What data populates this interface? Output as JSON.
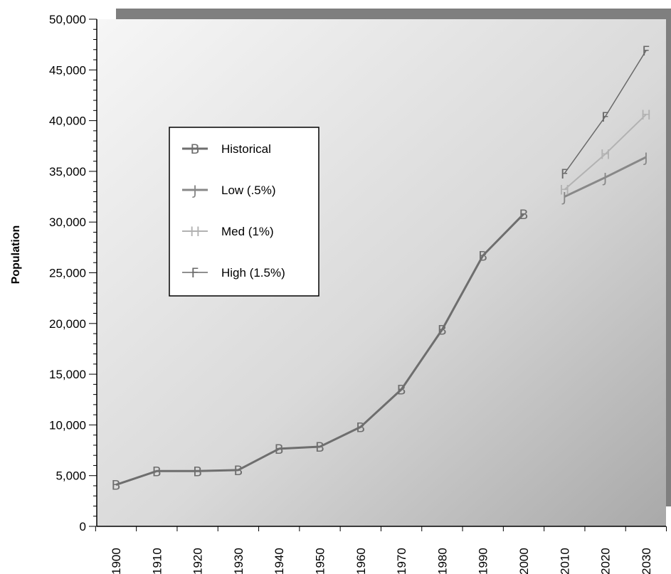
{
  "chart_data": {
    "type": "line",
    "title": "",
    "xlabel": "",
    "ylabel": "Population",
    "x": [
      "1900",
      "1910",
      "1920",
      "1930",
      "1940",
      "1950",
      "1960",
      "1970",
      "1980",
      "1990",
      "2000",
      "2010",
      "2020",
      "2030"
    ],
    "ylim": [
      0,
      50000
    ],
    "yticks": [
      "0",
      "5,000",
      "10,000",
      "15,000",
      "20,000",
      "25,000",
      "30,000",
      "35,000",
      "40,000",
      "45,000",
      "50,000"
    ],
    "grid": false,
    "legend_position": "upper-left inside",
    "series": [
      {
        "name": "Historical",
        "marker": "B",
        "color": "#6e6e6e",
        "points": [
          {
            "x": "1900",
            "y": 4100
          },
          {
            "x": "1910",
            "y": 5450
          },
          {
            "x": "1920",
            "y": 5450
          },
          {
            "x": "1930",
            "y": 5550
          },
          {
            "x": "1940",
            "y": 7650
          },
          {
            "x": "1950",
            "y": 7850
          },
          {
            "x": "1960",
            "y": 9800
          },
          {
            "x": "1970",
            "y": 13500
          },
          {
            "x": "1980",
            "y": 19400
          },
          {
            "x": "1990",
            "y": 26700
          },
          {
            "x": "2000",
            "y": 30800
          }
        ]
      },
      {
        "name": "Low (.5%)",
        "marker": "J",
        "color": "#888888",
        "points": [
          {
            "x": "2010",
            "y": 32500
          },
          {
            "x": "2020",
            "y": 34400
          },
          {
            "x": "2030",
            "y": 36400
          }
        ]
      },
      {
        "name": "Med (1%)",
        "marker": "H",
        "color": "#b2b2b2",
        "points": [
          {
            "x": "2010",
            "y": 33200
          },
          {
            "x": "2020",
            "y": 36700
          },
          {
            "x": "2030",
            "y": 40600
          }
        ]
      },
      {
        "name": "High (1.5%)",
        "marker": "F",
        "color": "#6a6a6a",
        "points": [
          {
            "x": "2010",
            "y": 34800
          },
          {
            "x": "2020",
            "y": 40400
          },
          {
            "x": "2030",
            "y": 46900
          }
        ]
      }
    ]
  }
}
